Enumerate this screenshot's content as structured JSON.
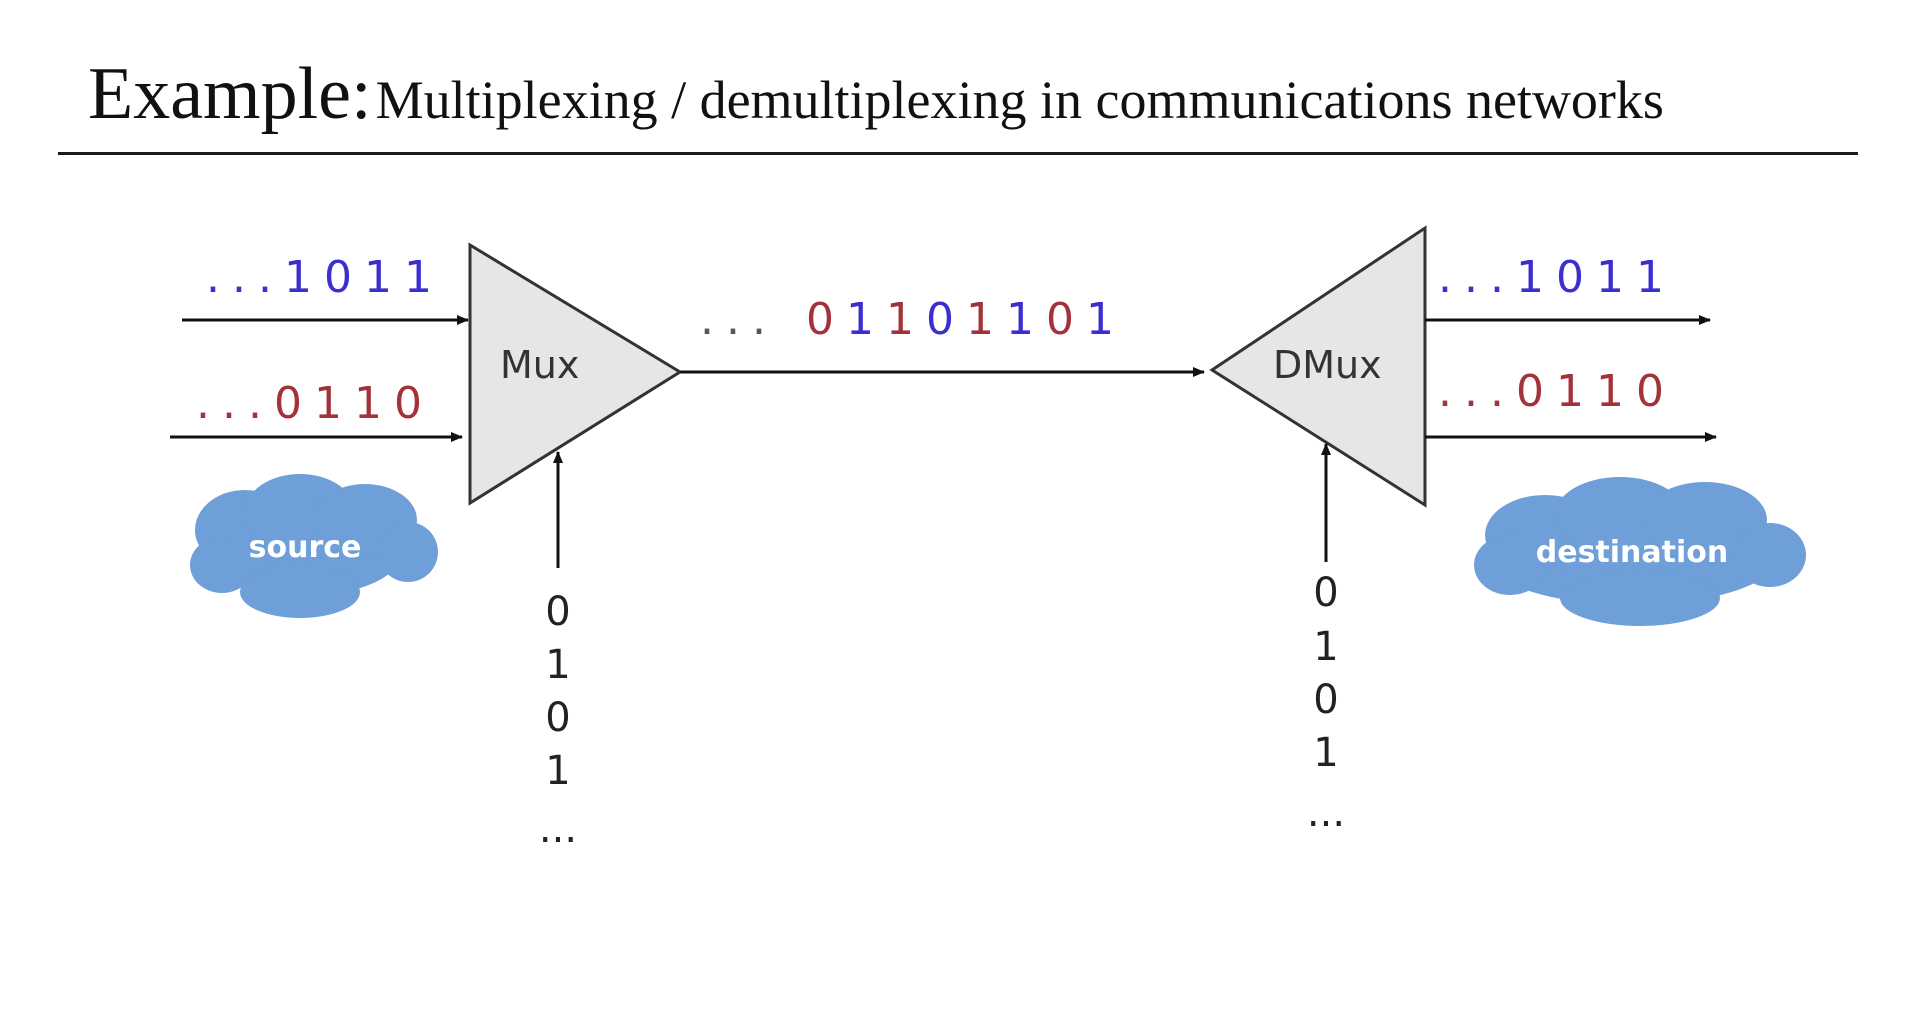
{
  "title": {
    "lead": "Example:",
    "rest": "Multiplexing / demultiplexing in communications networks"
  },
  "mux": {
    "label": "Mux",
    "input_top": {
      "prefix": "...",
      "bits": "1011"
    },
    "input_bottom": {
      "prefix": "...",
      "bits": "0110"
    },
    "select_bits": [
      "0",
      "1",
      "0",
      "1",
      "..."
    ]
  },
  "channel": {
    "prefix": "...",
    "bits": [
      {
        "v": "0",
        "c": "red"
      },
      {
        "v": "1",
        "c": "blue"
      },
      {
        "v": "1",
        "c": "red"
      },
      {
        "v": "0",
        "c": "blue"
      },
      {
        "v": "1",
        "c": "red"
      },
      {
        "v": "1",
        "c": "blue"
      },
      {
        "v": "0",
        "c": "red"
      },
      {
        "v": "1",
        "c": "blue"
      }
    ]
  },
  "dmux": {
    "label": "DMux",
    "output_top": {
      "prefix": "...",
      "bits": "1011"
    },
    "output_bottom": {
      "prefix": "...",
      "bits": "0110"
    },
    "select_bits": [
      "0",
      "1",
      "0",
      "1",
      "..."
    ]
  },
  "source_cloud": {
    "label": "source"
  },
  "destination_cloud": {
    "label": "destination"
  },
  "colors": {
    "blue_bits": "#3b2fd0",
    "red_bits": "#a3333a",
    "cloud": "#6f9fd8",
    "box_fill": "#e6e6e6"
  }
}
